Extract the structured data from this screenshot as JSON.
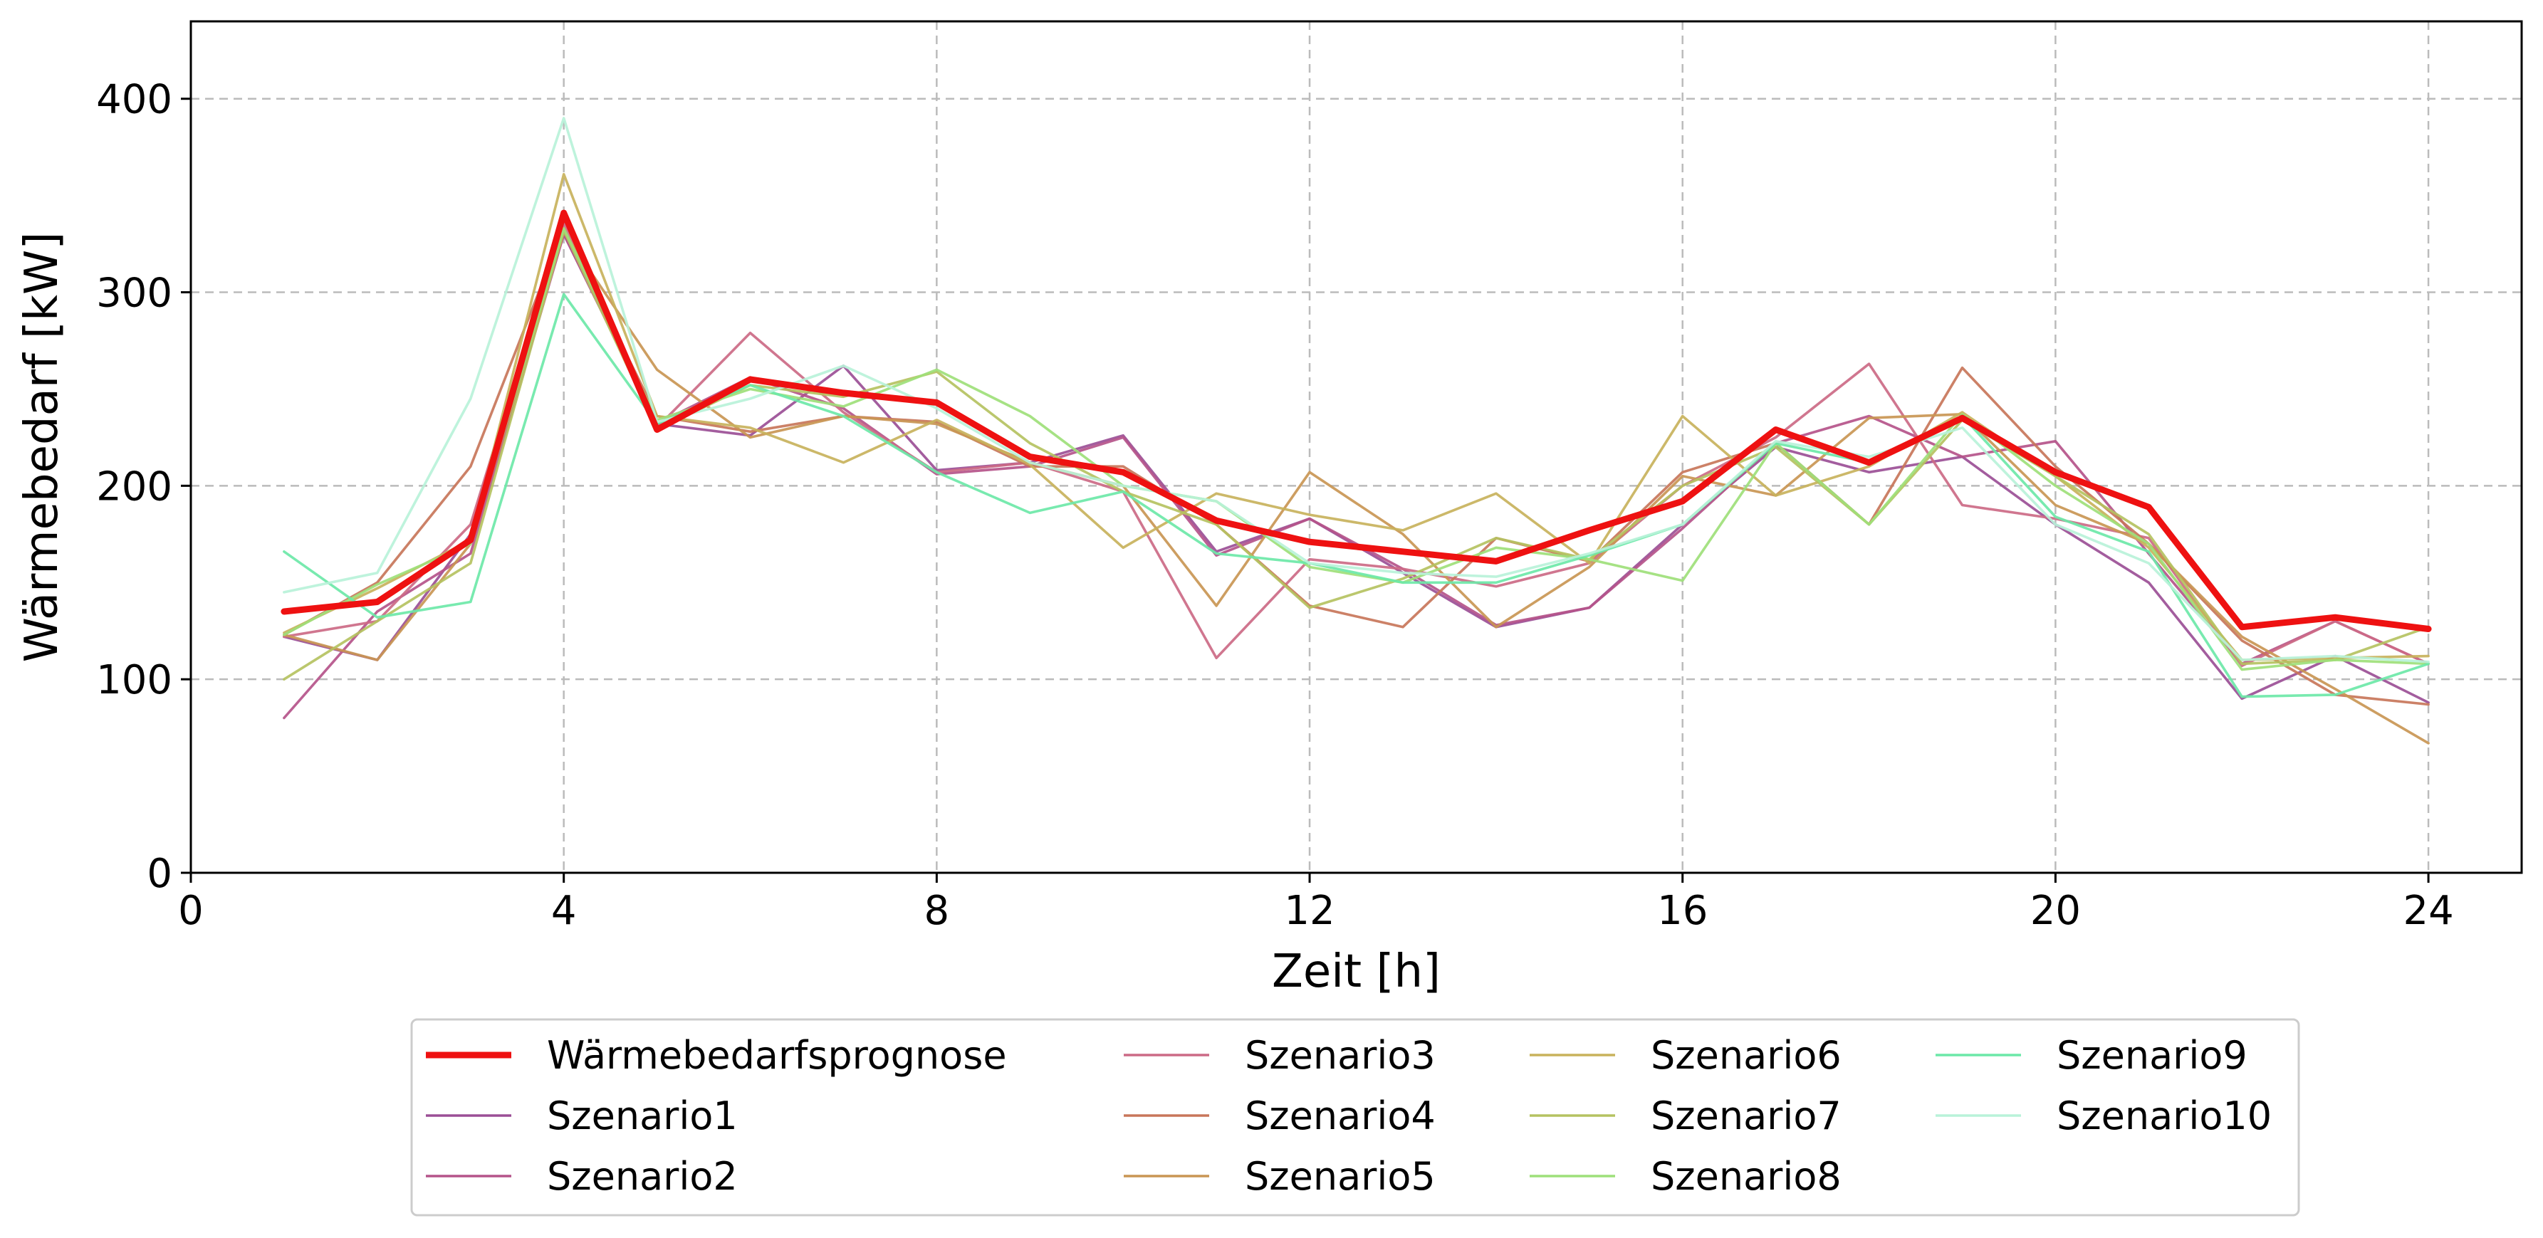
{
  "chart_data": {
    "type": "line",
    "xlabel": "Zeit [h]",
    "ylabel": "Wärmebedarf [kW]",
    "xlim": [
      0,
      25
    ],
    "ylim": [
      0,
      440
    ],
    "xticks": [
      "0",
      "4",
      "8",
      "12",
      "16",
      "20",
      "24"
    ],
    "yticks": [
      "0",
      "100",
      "200",
      "300",
      "400"
    ],
    "grid": true,
    "legend_placement": "bottom-center",
    "x": [
      1,
      2,
      3,
      4,
      5,
      6,
      7,
      8,
      9,
      10,
      11,
      12,
      13,
      14,
      15,
      16,
      17,
      18,
      19,
      20,
      21,
      22,
      23,
      24
    ],
    "series": [
      {
        "name": "Wärmebedarfsprognose",
        "color": "#ee1111",
        "values": [
          135,
          140,
          172,
          341,
          229,
          255,
          248,
          243,
          215,
          207,
          182,
          171,
          166,
          161,
          177,
          192,
          229,
          212,
          235,
          207,
          189,
          127,
          132,
          126
        ]
      },
      {
        "name": "Szenario1",
        "color": "#9b4f96",
        "values": [
          122,
          110,
          175,
          330,
          232,
          226,
          262,
          208,
          212,
          226,
          166,
          183,
          155,
          127,
          137,
          180,
          220,
          207,
          215,
          180,
          150,
          90,
          112,
          88
        ]
      },
      {
        "name": "Szenario2",
        "color": "#b5548a",
        "values": [
          80,
          135,
          165,
          330,
          232,
          256,
          240,
          206,
          210,
          225,
          164,
          183,
          157,
          128,
          137,
          178,
          222,
          236,
          215,
          223,
          165,
          108,
          130,
          108
        ]
      },
      {
        "name": "Szenario3",
        "color": "#cc6a86",
        "values": [
          122,
          130,
          180,
          336,
          230,
          279,
          238,
          207,
          212,
          197,
          111,
          162,
          157,
          148,
          160,
          200,
          225,
          263,
          190,
          183,
          173,
          107,
          130,
          108
        ]
      },
      {
        "name": "Szenario4",
        "color": "#c8765a",
        "values": [
          123,
          150,
          210,
          333,
          236,
          228,
          236,
          233,
          210,
          210,
          180,
          138,
          127,
          173,
          161,
          207,
          222,
          180,
          261,
          210,
          170,
          120,
          92,
          87
        ]
      },
      {
        "name": "Szenario5",
        "color": "#c99654",
        "values": [
          123,
          110,
          170,
          331,
          260,
          225,
          236,
          232,
          212,
          200,
          138,
          207,
          175,
          127,
          158,
          205,
          195,
          235,
          237,
          190,
          170,
          122,
          95,
          67
        ]
      },
      {
        "name": "Szenario6",
        "color": "#c8b25c",
        "values": [
          124,
          147,
          172,
          361,
          236,
          230,
          212,
          234,
          211,
          168,
          196,
          185,
          177,
          196,
          160,
          236,
          195,
          210,
          238,
          205,
          168,
          110,
          111,
          112
        ]
      },
      {
        "name": "Szenario7",
        "color": "#b5c261",
        "values": [
          100,
          130,
          160,
          332,
          229,
          252,
          246,
          259,
          222,
          197,
          180,
          137,
          152,
          173,
          162,
          200,
          220,
          180,
          234,
          205,
          175,
          108,
          110,
          127
        ]
      },
      {
        "name": "Szenario8",
        "color": "#9ee07a",
        "values": [
          123,
          149,
          170,
          333,
          234,
          250,
          241,
          260,
          236,
          200,
          192,
          158,
          150,
          168,
          162,
          151,
          222,
          180,
          237,
          200,
          170,
          105,
          110,
          108
        ]
      },
      {
        "name": "Szenario9",
        "color": "#6ce8a8",
        "values": [
          166,
          132,
          140,
          299,
          232,
          252,
          236,
          207,
          186,
          197,
          165,
          160,
          150,
          150,
          164,
          180,
          222,
          212,
          236,
          184,
          166,
          91,
          92,
          108
        ]
      },
      {
        "name": "Szenario10",
        "color": "#b9f2d9",
        "values": [
          145,
          155,
          245,
          390,
          233,
          245,
          262,
          240,
          212,
          200,
          192,
          160,
          155,
          153,
          165,
          180,
          223,
          215,
          230,
          180,
          160,
          110,
          112,
          109
        ]
      }
    ]
  }
}
